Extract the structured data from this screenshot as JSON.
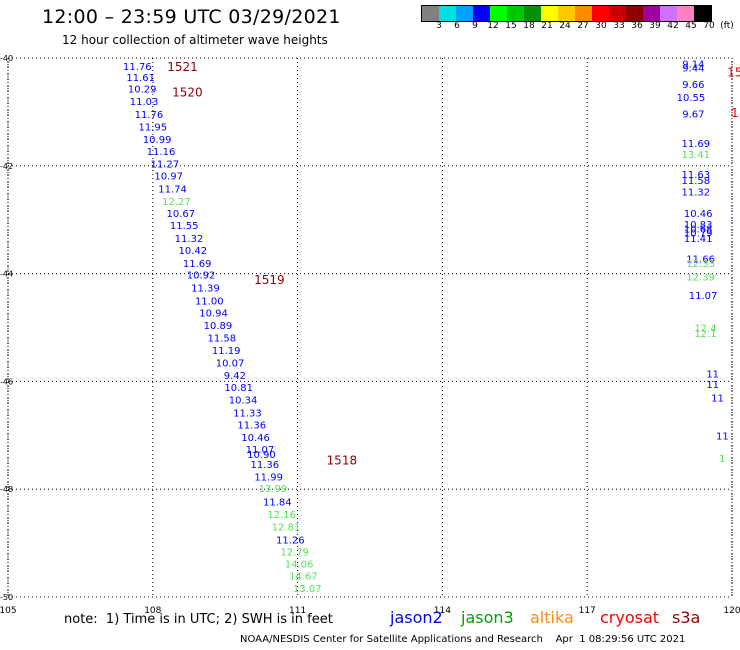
{
  "header": {
    "title": "12:00 – 23:59 UTC 03/29/2021",
    "subtitle": "12 hour collection of altimeter wave heights"
  },
  "colorbar": {
    "colors": [
      "#808080",
      "#00e0e0",
      "#00a0ff",
      "#0000ff",
      "#00ff00",
      "#00c800",
      "#009000",
      "#ffff00",
      "#ffc800",
      "#ff8c00",
      "#ff0000",
      "#c80000",
      "#900000",
      "#a000a0",
      "#d070ff",
      "#ff80c0",
      "#000000"
    ],
    "labels": [
      "3",
      "6",
      "9",
      "12",
      "15",
      "18",
      "21",
      "24",
      "27",
      "30",
      "33",
      "36",
      "39",
      "42",
      "45",
      "70",
      "(ft)"
    ]
  },
  "note": "note:  1) Time is in UTC; 2) SWH is in feet",
  "satellites": [
    {
      "name": "jason2",
      "color": "#0000ff"
    },
    {
      "name": "jason3",
      "color": "#00a000"
    },
    {
      "name": "altika",
      "color": "#ff8c00"
    },
    {
      "name": "cryosat",
      "color": "#ff0000"
    },
    {
      "name": "s3a",
      "color": "#900000"
    }
  ],
  "footer": "NOAA/NESDIS Center for Satellite Applications and Research    Apr  1 08:29:56 UTC 2021",
  "chart_data": {
    "type": "scatter",
    "x_ticks": [
      "105",
      "108",
      "111",
      "114",
      "117",
      "120"
    ],
    "y_ticks": [
      "-40",
      "-42",
      "-44",
      "-46",
      "-48",
      "-50"
    ],
    "xlim": [
      105,
      120
    ],
    "ylim": [
      -50,
      -40
    ],
    "grid": true,
    "grid_style": "dotted",
    "time_labels": [
      {
        "text": "1521",
        "lon": 108.3,
        "lat": -40.15
      },
      {
        "text": "1520",
        "lon": 108.4,
        "lat": -40.62
      },
      {
        "text": "1519",
        "lon": 110.1,
        "lat": -44.1
      },
      {
        "text": "1518",
        "lon": 111.6,
        "lat": -47.45
      }
    ],
    "main_track": [
      {
        "lon": 107.68,
        "lat": -40.15,
        "swh": "11.76",
        "sat": "jason2"
      },
      {
        "lon": 107.75,
        "lat": -40.35,
        "swh": "11.61",
        "sat": "jason2"
      },
      {
        "lon": 107.78,
        "lat": -40.57,
        "swh": "10.29",
        "sat": "jason2"
      },
      {
        "lon": 107.82,
        "lat": -40.8,
        "swh": "11.03",
        "sat": "jason2"
      },
      {
        "lon": 107.92,
        "lat": -41.04,
        "swh": "11.76",
        "sat": "jason2"
      },
      {
        "lon": 108.0,
        "lat": -41.27,
        "swh": "11.95",
        "sat": "jason2"
      },
      {
        "lon": 108.09,
        "lat": -41.5,
        "swh": "10.99",
        "sat": "jason2"
      },
      {
        "lon": 108.17,
        "lat": -41.73,
        "swh": "11.16",
        "sat": "jason2"
      },
      {
        "lon": 108.25,
        "lat": -41.96,
        "swh": "11.27",
        "sat": "jason2"
      },
      {
        "lon": 108.33,
        "lat": -42.18,
        "swh": "10.97",
        "sat": "jason2"
      },
      {
        "lon": 108.41,
        "lat": -42.42,
        "swh": "11.74",
        "sat": "jason2"
      },
      {
        "lon": 108.49,
        "lat": -42.65,
        "swh": "12.27",
        "sat": "jason3"
      },
      {
        "lon": 108.58,
        "lat": -42.88,
        "swh": "10.67",
        "sat": "jason2"
      },
      {
        "lon": 108.65,
        "lat": -43.1,
        "swh": "11.55",
        "sat": "jason2"
      },
      {
        "lon": 108.75,
        "lat": -43.34,
        "swh": "11.32",
        "sat": "jason2"
      },
      {
        "lon": 108.83,
        "lat": -43.56,
        "swh": "10.42",
        "sat": "jason2"
      },
      {
        "lon": 108.92,
        "lat": -43.8,
        "swh": "11.69",
        "sat": "jason2"
      },
      {
        "lon": 109.0,
        "lat": -44.02,
        "swh": "10.92",
        "sat": "jason2"
      },
      {
        "lon": 109.09,
        "lat": -44.26,
        "swh": "11.39",
        "sat": "jason2"
      },
      {
        "lon": 109.17,
        "lat": -44.5,
        "swh": "11.00",
        "sat": "jason2"
      },
      {
        "lon": 109.26,
        "lat": -44.72,
        "swh": "10.94",
        "sat": "jason2"
      },
      {
        "lon": 109.35,
        "lat": -44.95,
        "swh": "10.89",
        "sat": "jason2"
      },
      {
        "lon": 109.43,
        "lat": -45.19,
        "swh": "11.58",
        "sat": "jason2"
      },
      {
        "lon": 109.52,
        "lat": -45.42,
        "swh": "11.19",
        "sat": "jason2"
      },
      {
        "lon": 109.6,
        "lat": -45.65,
        "swh": "10.07",
        "sat": "jason2"
      },
      {
        "lon": 109.7,
        "lat": -45.88,
        "swh": "9.42",
        "sat": "jason2"
      },
      {
        "lon": 109.78,
        "lat": -46.1,
        "swh": "10.81",
        "sat": "jason2"
      },
      {
        "lon": 109.87,
        "lat": -46.34,
        "swh": "10.34",
        "sat": "jason2"
      },
      {
        "lon": 109.96,
        "lat": -46.58,
        "swh": "11.33",
        "sat": "jason2"
      },
      {
        "lon": 110.05,
        "lat": -46.8,
        "swh": "11.36",
        "sat": "jason2"
      },
      {
        "lon": 110.13,
        "lat": -47.03,
        "swh": "10.46",
        "sat": "jason2"
      },
      {
        "lon": 110.22,
        "lat": -47.25,
        "swh": "11.07",
        "sat": "jason2"
      },
      {
        "lon": 110.25,
        "lat": -47.35,
        "swh": "10.90",
        "sat": "jason2"
      },
      {
        "lon": 110.32,
        "lat": -47.53,
        "swh": "11.36",
        "sat": "jason2"
      },
      {
        "lon": 110.4,
        "lat": -47.76,
        "swh": "11.99",
        "sat": "jason2"
      },
      {
        "lon": 110.49,
        "lat": -47.98,
        "swh": "13.99",
        "sat": "jason3"
      },
      {
        "lon": 110.58,
        "lat": -48.23,
        "swh": "11.84",
        "sat": "jason2"
      },
      {
        "lon": 110.67,
        "lat": -48.46,
        "swh": "12.16",
        "sat": "jason3"
      },
      {
        "lon": 110.76,
        "lat": -48.69,
        "swh": "12.81",
        "sat": "jason3"
      },
      {
        "lon": 110.85,
        "lat": -48.93,
        "swh": "11.26",
        "sat": "jason2"
      },
      {
        "lon": 110.94,
        "lat": -49.16,
        "swh": "12.79",
        "sat": "jason3"
      },
      {
        "lon": 111.03,
        "lat": -49.38,
        "swh": "14.06",
        "sat": "jason3"
      },
      {
        "lon": 111.12,
        "lat": -49.6,
        "swh": "14.67",
        "sat": "jason3"
      },
      {
        "lon": 111.2,
        "lat": -49.83,
        "swh": "13.07",
        "sat": "jason3"
      }
    ],
    "edge_track": [
      {
        "lon": 119.2,
        "lat": -40.1,
        "swh": "9.14",
        "sat": "jason2"
      },
      {
        "lon": 119.2,
        "lat": -40.18,
        "swh": "9.44",
        "sat": "jason2"
      },
      {
        "lon": 119.2,
        "lat": -40.48,
        "swh": "9.66",
        "sat": "jason2"
      },
      {
        "lon": 119.15,
        "lat": -40.72,
        "swh": "10.55",
        "sat": "jason2"
      },
      {
        "lon": 119.2,
        "lat": -41.03,
        "swh": "9.67",
        "sat": "jason2"
      },
      {
        "lon": 119.25,
        "lat": -41.58,
        "swh": "11.69",
        "sat": "jason2"
      },
      {
        "lon": 119.25,
        "lat": -41.78,
        "swh": "13.41",
        "sat": "jason3"
      },
      {
        "lon": 119.25,
        "lat": -42.15,
        "swh": "11.63",
        "sat": "jason2"
      },
      {
        "lon": 119.25,
        "lat": -42.26,
        "swh": "11.58",
        "sat": "jason2"
      },
      {
        "lon": 119.25,
        "lat": -42.48,
        "swh": "11.32",
        "sat": "jason2"
      },
      {
        "lon": 119.3,
        "lat": -42.88,
        "swh": "10.46",
        "sat": "jason2"
      },
      {
        "lon": 119.3,
        "lat": -43.08,
        "swh": "10.83",
        "sat": "jason2"
      },
      {
        "lon": 119.3,
        "lat": -43.16,
        "swh": "10.68",
        "sat": "jason2"
      },
      {
        "lon": 119.3,
        "lat": -43.24,
        "swh": "10.79",
        "sat": "jason2"
      },
      {
        "lon": 119.3,
        "lat": -43.34,
        "swh": "11.41",
        "sat": "jason2"
      },
      {
        "lon": 119.35,
        "lat": -43.72,
        "swh": "11.66",
        "sat": "jason2"
      },
      {
        "lon": 119.35,
        "lat": -43.8,
        "swh": "12.33",
        "sat": "jason3"
      },
      {
        "lon": 119.35,
        "lat": -44.05,
        "swh": "12.39",
        "sat": "jason3"
      },
      {
        "lon": 119.4,
        "lat": -44.4,
        "swh": "11.07",
        "sat": "jason2"
      },
      {
        "lon": 119.45,
        "lat": -45.0,
        "swh": "12.4",
        "sat": "jason3"
      },
      {
        "lon": 119.45,
        "lat": -45.1,
        "swh": "12.1",
        "sat": "jason3"
      },
      {
        "lon": 119.6,
        "lat": -45.85,
        "swh": "11",
        "sat": "jason2"
      },
      {
        "lon": 119.6,
        "lat": -46.05,
        "swh": "11",
        "sat": "jason2"
      },
      {
        "lon": 119.7,
        "lat": -46.3,
        "swh": "11",
        "sat": "jason2"
      },
      {
        "lon": 119.8,
        "lat": -47.0,
        "swh": "11",
        "sat": "jason2"
      },
      {
        "lon": 119.8,
        "lat": -47.42,
        "swh": "1",
        "sat": "jason3"
      }
    ],
    "edge_time_labels": [
      {
        "text": "15",
        "lon": 119.9,
        "lat": -40.25
      },
      {
        "text": "1",
        "lon": 119.98,
        "lat": -41.0
      }
    ]
  }
}
